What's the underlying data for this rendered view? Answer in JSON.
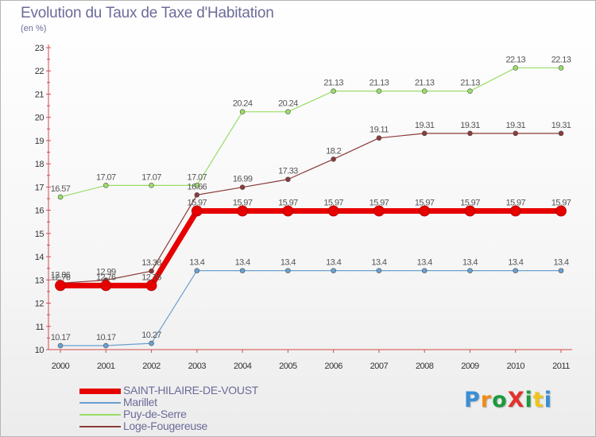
{
  "title": "Evolution du Taux de Taxe d'Habitation",
  "subtitle": "(en %)",
  "logo": {
    "text": "ProXiti",
    "colors": [
      "#3a8fd6",
      "#f08c1a",
      "#1a9a3c",
      "#e3312d",
      "#1a9a3c",
      "#f0c419",
      "#3a8fd6"
    ]
  },
  "chart_data": {
    "type": "line",
    "x": [
      "2000",
      "2001",
      "2002",
      "2003",
      "2004",
      "2005",
      "2006",
      "2007",
      "2008",
      "2009",
      "2010",
      "2011"
    ],
    "ylim": [
      10,
      23
    ],
    "yticks": [
      10,
      11,
      12,
      13,
      14,
      15,
      16,
      17,
      18,
      19,
      20,
      21,
      22,
      23
    ],
    "grid": false,
    "series": [
      {
        "name": "SAINT-HILAIRE-DE-VOUST",
        "color": "#e60000",
        "width": 7,
        "values": [
          12.76,
          12.76,
          12.76,
          15.97,
          15.97,
          15.97,
          15.97,
          15.97,
          15.97,
          15.97,
          15.97,
          15.97
        ],
        "labels": [
          "12.76",
          "12.76",
          "12.76",
          "15.97",
          "15.97",
          "15.97",
          "15.97",
          "15.97",
          "15.97",
          "15.97",
          "15.97",
          "15.97"
        ]
      },
      {
        "name": "Marillet",
        "color": "#6a9fd0",
        "width": 1.2,
        "values": [
          10.17,
          10.17,
          10.27,
          13.4,
          13.4,
          13.4,
          13.4,
          13.4,
          13.4,
          13.4,
          13.4,
          13.4
        ],
        "labels": [
          "10.17",
          "10.17",
          "10.27",
          "13.4",
          "13.4",
          "13.4",
          "13.4",
          "13.4",
          "13.4",
          "13.4",
          "13.4",
          "13.4"
        ]
      },
      {
        "name": "Puy-de-Serre",
        "color": "#99dd66",
        "width": 1.2,
        "values": [
          16.57,
          17.07,
          17.07,
          17.07,
          20.24,
          20.24,
          21.13,
          21.13,
          21.13,
          21.13,
          22.13,
          22.13
        ],
        "labels": [
          "16.57",
          "17.07",
          "17.07",
          "17.07",
          "20.24",
          "20.24",
          "21.13",
          "21.13",
          "21.13",
          "21.13",
          "22.13",
          "22.13"
        ]
      },
      {
        "name": "Loge-Fougereuse",
        "color": "#8b3a3a",
        "width": 1.2,
        "values": [
          12.86,
          12.99,
          13.38,
          16.66,
          16.99,
          17.33,
          18.2,
          19.11,
          19.31,
          19.31,
          19.31,
          19.31
        ],
        "labels": [
          "12.86",
          "12.99",
          "13.38",
          "16.66",
          "16.99",
          "17.33",
          "18.2",
          "19.11",
          "19.31",
          "19.31",
          "19.31",
          "19.31"
        ]
      }
    ]
  }
}
